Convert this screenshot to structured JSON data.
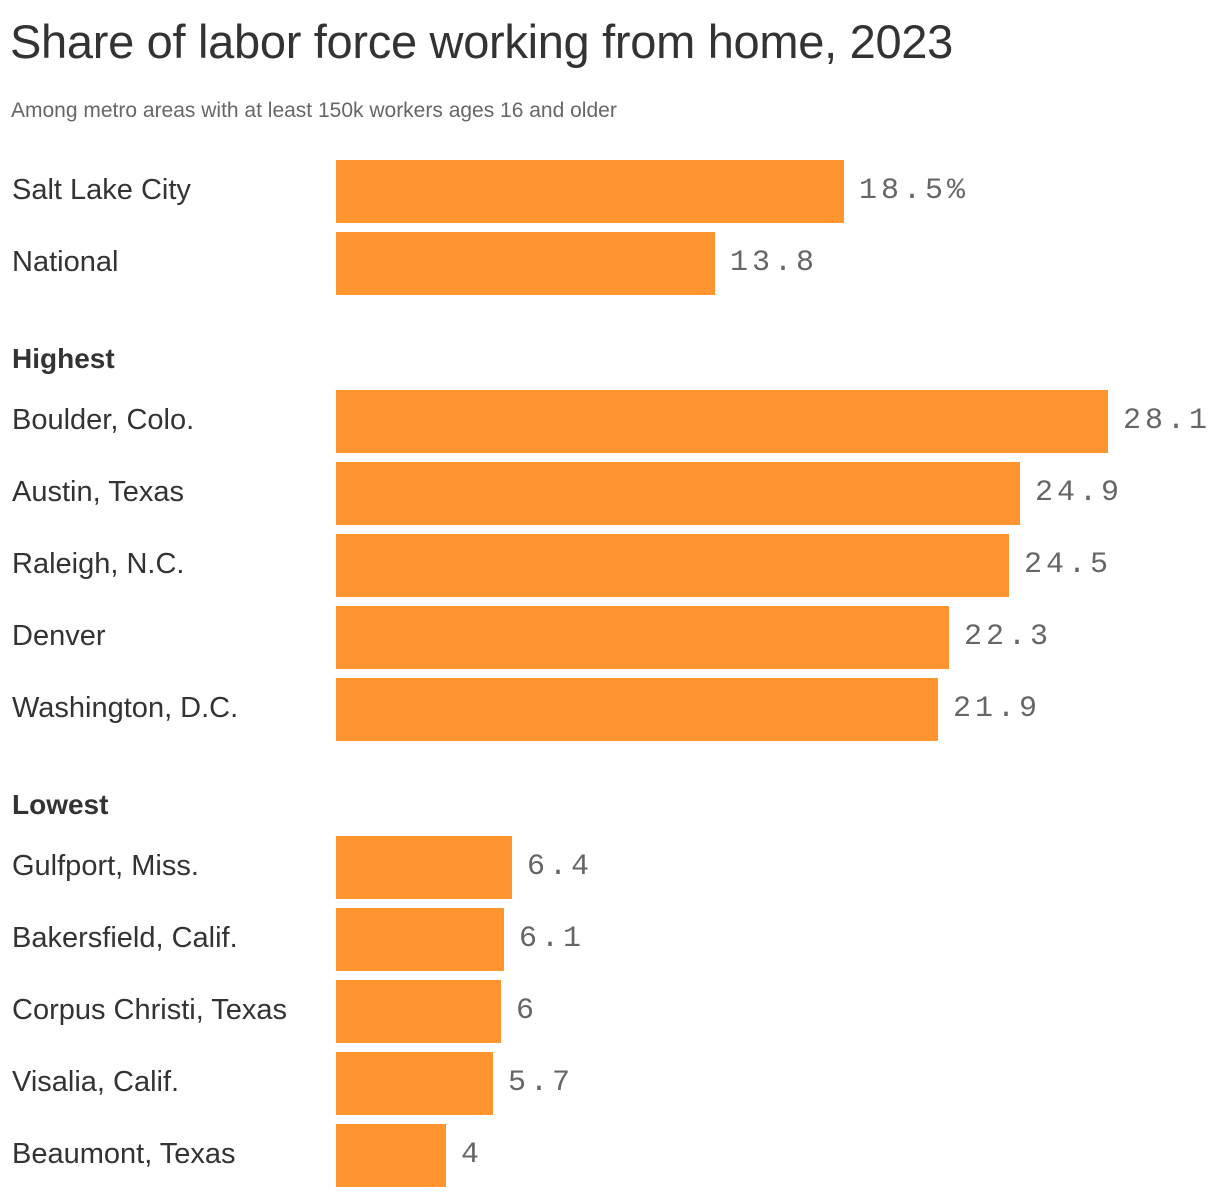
{
  "title": "Share of labor force working from home, 2023",
  "subtitle": "Among metro areas with at least 150k workers ages 16 and older",
  "colors": {
    "bar": "#ff9431",
    "text": "#333333",
    "value": "#666666"
  },
  "groups": [
    {
      "label": "",
      "rows": [
        {
          "label": "Salt Lake City",
          "value": 18.5,
          "display": "18.5%"
        },
        {
          "label": "National",
          "value": 13.8,
          "display": "13.8"
        }
      ]
    },
    {
      "label": "Highest",
      "rows": [
        {
          "label": "Boulder, Colo.",
          "value": 28.1,
          "display": "28.1"
        },
        {
          "label": "Austin, Texas",
          "value": 24.9,
          "display": "24.9"
        },
        {
          "label": "Raleigh, N.C.",
          "value": 24.5,
          "display": "24.5"
        },
        {
          "label": "Denver",
          "value": 22.3,
          "display": "22.3"
        },
        {
          "label": "Washington, D.C.",
          "value": 21.9,
          "display": "21.9"
        }
      ]
    },
    {
      "label": "Lowest",
      "rows": [
        {
          "label": "Gulfport, Miss.",
          "value": 6.4,
          "display": "6.4"
        },
        {
          "label": "Bakersfield, Calif.",
          "value": 6.1,
          "display": "6.1"
        },
        {
          "label": "Corpus Christi, Texas",
          "value": 6,
          "display": "6"
        },
        {
          "label": "Visalia, Calif.",
          "value": 5.7,
          "display": "5.7"
        },
        {
          "label": "Beaumont, Texas",
          "value": 4,
          "display": "4"
        }
      ]
    }
  ],
  "chart_data": {
    "type": "bar",
    "orientation": "horizontal",
    "title": "Share of labor force working from home, 2023",
    "subtitle": "Among metro areas with at least 150k workers ages 16 and older",
    "xlabel": "",
    "ylabel": "",
    "unit": "%",
    "grid": false,
    "legend": null,
    "categories": [
      "Salt Lake City",
      "National",
      "Boulder, Colo.",
      "Austin, Texas",
      "Raleigh, N.C.",
      "Denver",
      "Washington, D.C.",
      "Gulfport, Miss.",
      "Bakersfield, Calif.",
      "Corpus Christi, Texas",
      "Visalia, Calif.",
      "Beaumont, Texas"
    ],
    "groups": {
      "": [
        "Salt Lake City",
        "National"
      ],
      "Highest": [
        "Boulder, Colo.",
        "Austin, Texas",
        "Raleigh, N.C.",
        "Denver",
        "Washington, D.C."
      ],
      "Lowest": [
        "Gulfport, Miss.",
        "Bakersfield, Calif.",
        "Corpus Christi, Texas",
        "Visalia, Calif.",
        "Beaumont, Texas"
      ]
    },
    "values": [
      18.5,
      13.8,
      28.1,
      24.9,
      24.5,
      22.3,
      21.9,
      6.4,
      6.1,
      6,
      5.7,
      4
    ],
    "xlim": [
      0,
      28.1
    ]
  }
}
